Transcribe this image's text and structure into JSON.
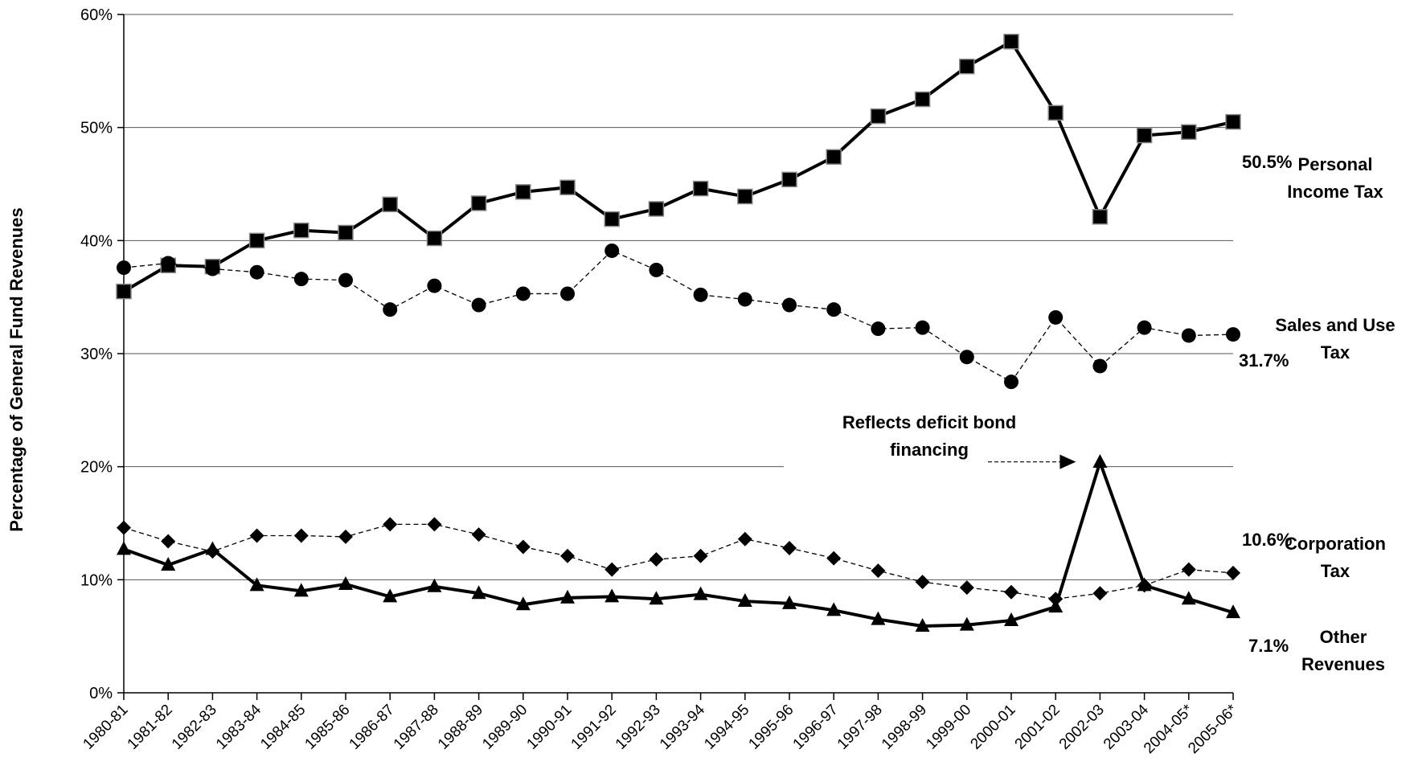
{
  "chart_data": {
    "type": "line",
    "y_axis_label": "Percentage of General Fund Revenues",
    "categories": [
      "1980-81",
      "1981-82",
      "1982-83",
      "1983-84",
      "1984-85",
      "1985-86",
      "1986-87",
      "1987-88",
      "1988-89",
      "1989-90",
      "1990-91",
      "1991-92",
      "1992-93",
      "1993-94",
      "1994-95",
      "1995-96",
      "1996-97",
      "1997-98",
      "1998-99",
      "1999-00",
      "2000-01",
      "2001-02",
      "2002-03",
      "2003-04",
      "2004-05*",
      "2005-06*"
    ],
    "ylim": [
      0,
      60
    ],
    "yticks": [
      {
        "value": 0,
        "label": "0%"
      },
      {
        "value": 10,
        "label": "10%"
      },
      {
        "value": 20,
        "label": "20%"
      },
      {
        "value": 30,
        "label": "30%"
      },
      {
        "value": 40,
        "label": "40%"
      },
      {
        "value": 50,
        "label": "50%"
      },
      {
        "value": 60,
        "label": "60%"
      }
    ],
    "grid": true,
    "annotation": "Reflects deficit bond financing",
    "series": [
      {
        "name": "Personal Income Tax",
        "color": "#000000",
        "marker": "square",
        "line_style": "solid",
        "values": [
          35.5,
          37.8,
          37.7,
          40.0,
          40.9,
          40.7,
          43.2,
          40.2,
          43.3,
          44.3,
          44.7,
          41.9,
          42.8,
          44.6,
          43.9,
          45.4,
          47.4,
          51.0,
          52.5,
          55.4,
          57.6,
          51.3,
          42.1,
          49.3,
          49.6,
          50.5
        ],
        "value_labels": [
          null,
          null,
          null,
          null,
          null,
          null,
          null,
          null,
          null,
          null,
          null,
          null,
          null,
          null,
          null,
          null,
          null,
          null,
          null,
          null,
          null,
          null,
          null,
          null,
          null,
          "50.5%"
        ]
      },
      {
        "name": "Sales and Use Tax",
        "color": "#000000",
        "marker": "circle",
        "line_style": "dashed",
        "values": [
          37.6,
          38.0,
          37.5,
          37.2,
          36.6,
          36.5,
          33.9,
          36.0,
          34.3,
          35.3,
          35.3,
          39.1,
          37.4,
          35.2,
          34.8,
          34.3,
          33.9,
          32.2,
          32.3,
          29.7,
          27.5,
          33.2,
          28.9,
          32.3,
          31.6,
          31.7
        ],
        "value_labels": [
          null,
          null,
          null,
          null,
          null,
          null,
          null,
          null,
          null,
          null,
          null,
          null,
          null,
          null,
          null,
          null,
          null,
          null,
          null,
          null,
          null,
          null,
          null,
          null,
          null,
          "31.7%"
        ]
      },
      {
        "name": "Corporation Tax",
        "color": "#000000",
        "marker": "diamond",
        "line_style": "dashed",
        "values": [
          14.6,
          13.4,
          12.5,
          13.9,
          13.9,
          13.8,
          14.9,
          14.9,
          14.0,
          12.9,
          12.1,
          10.9,
          11.8,
          12.1,
          13.6,
          12.8,
          11.9,
          10.8,
          9.8,
          9.3,
          8.9,
          8.3,
          8.8,
          9.5,
          10.9,
          10.6
        ],
        "value_labels": [
          null,
          null,
          null,
          null,
          null,
          null,
          null,
          null,
          null,
          null,
          null,
          null,
          null,
          null,
          null,
          null,
          null,
          null,
          null,
          null,
          null,
          null,
          null,
          null,
          null,
          "10.6%"
        ]
      },
      {
        "name": "Other Revenues",
        "color": "#000000",
        "marker": "triangle",
        "line_style": "solid",
        "values": [
          12.7,
          11.3,
          12.7,
          9.5,
          9.0,
          9.6,
          8.5,
          9.4,
          8.8,
          7.8,
          8.4,
          8.5,
          8.3,
          8.7,
          8.1,
          7.9,
          7.3,
          6.5,
          5.9,
          6.0,
          6.4,
          7.6,
          20.4,
          9.5,
          8.3,
          7.1
        ],
        "value_labels": [
          null,
          null,
          null,
          null,
          null,
          null,
          null,
          null,
          null,
          null,
          null,
          null,
          null,
          null,
          null,
          null,
          null,
          null,
          null,
          null,
          null,
          null,
          null,
          null,
          null,
          "7.1%"
        ]
      }
    ]
  }
}
